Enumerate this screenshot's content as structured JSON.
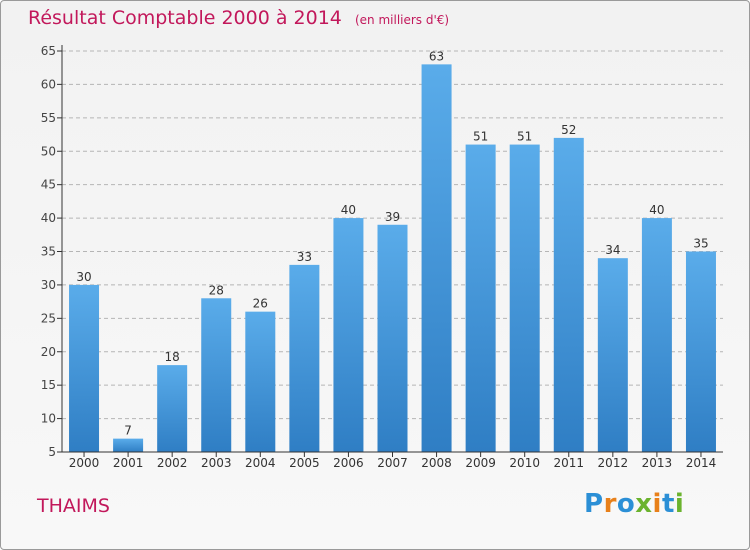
{
  "header": {
    "title": "Résultat Comptable 2000 à 2014",
    "unit": "(en milliers d'€)"
  },
  "footer": {
    "commune": "THAIMS",
    "logo": {
      "letters": [
        "P",
        "r",
        "o",
        "x",
        "i",
        "t",
        "i"
      ]
    }
  },
  "colors": {
    "title": "#c2185b",
    "bar_top": "#5aacea",
    "bar_bottom": "#2f7ec4",
    "axis": "#333333",
    "grid": "#b5b5b5",
    "logo_letters": [
      "#2b8fd6",
      "#e8801a",
      "#2b8fd6",
      "#6bb32e",
      "#e8801a",
      "#2b8fd6",
      "#6bb32e"
    ]
  },
  "chart_data": {
    "type": "bar",
    "title": "Résultat Comptable 2000 à 2014",
    "subtitle": "(en milliers d'€)",
    "xlabel": "",
    "ylabel": "",
    "categories": [
      "2000",
      "2001",
      "2002",
      "2003",
      "2004",
      "2005",
      "2006",
      "2007",
      "2008",
      "2009",
      "2010",
      "2011",
      "2012",
      "2013",
      "2014"
    ],
    "values": [
      30,
      7,
      18,
      28,
      26,
      33,
      40,
      39,
      63,
      51,
      51,
      52,
      34,
      40,
      35
    ],
    "ylim": [
      5,
      65
    ],
    "yticks": [
      5,
      10,
      15,
      20,
      25,
      30,
      35,
      40,
      45,
      50,
      55,
      60,
      65
    ],
    "grid": true,
    "legend": "none"
  }
}
